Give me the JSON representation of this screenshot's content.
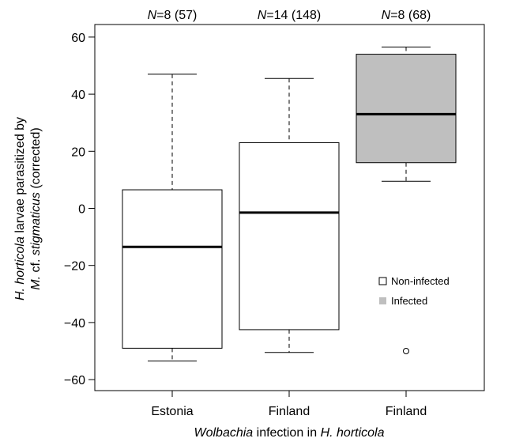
{
  "chart_data": {
    "type": "box",
    "title": "",
    "xlabel": {
      "italic": "Wolbachia",
      "rest": " infection in ",
      "italic2": "H. horticola"
    },
    "ylabel": {
      "line1": {
        "italic": "H. horticola",
        "rest": " larvae parasitized by"
      },
      "line2": {
        "italic": "M.",
        "rest": " cf. ",
        "italic2": "stigmaticus",
        "rest2": " (corrected)"
      }
    },
    "ylim": [
      -65,
      65
    ],
    "yticks": [
      -60,
      -40,
      -20,
      0,
      20,
      40,
      60
    ],
    "categories": [
      "Estonia",
      "Finland",
      "Finland"
    ],
    "group_annotations": [
      {
        "n_label": "N",
        "text": "=8 (57)"
      },
      {
        "n_label": "N",
        "text": "=14 (148)"
      },
      {
        "n_label": "N",
        "text": "=8 (68)"
      }
    ],
    "boxes": [
      {
        "category": "Estonia",
        "status": "Non-infected",
        "whisker_low": -53.5,
        "q1": -49,
        "median": -13.5,
        "q3": 6.5,
        "whisker_high": 47,
        "outliers": []
      },
      {
        "category": "Finland",
        "status": "Non-infected",
        "whisker_low": -50.5,
        "q1": -42.5,
        "median": -1.5,
        "q3": 23,
        "whisker_high": 45.5,
        "outliers": []
      },
      {
        "category": "Finland",
        "status": "Infected",
        "whisker_low": 9.5,
        "q1": 16,
        "median": 33,
        "q3": 54,
        "whisker_high": 56.5,
        "outliers": [
          -50
        ]
      }
    ],
    "legend": {
      "position": "lower-right",
      "items": [
        {
          "label": "Non-infected",
          "color": "#ffffff"
        },
        {
          "label": "Infected",
          "color": "#bfbfbf"
        }
      ]
    },
    "grid": false
  }
}
